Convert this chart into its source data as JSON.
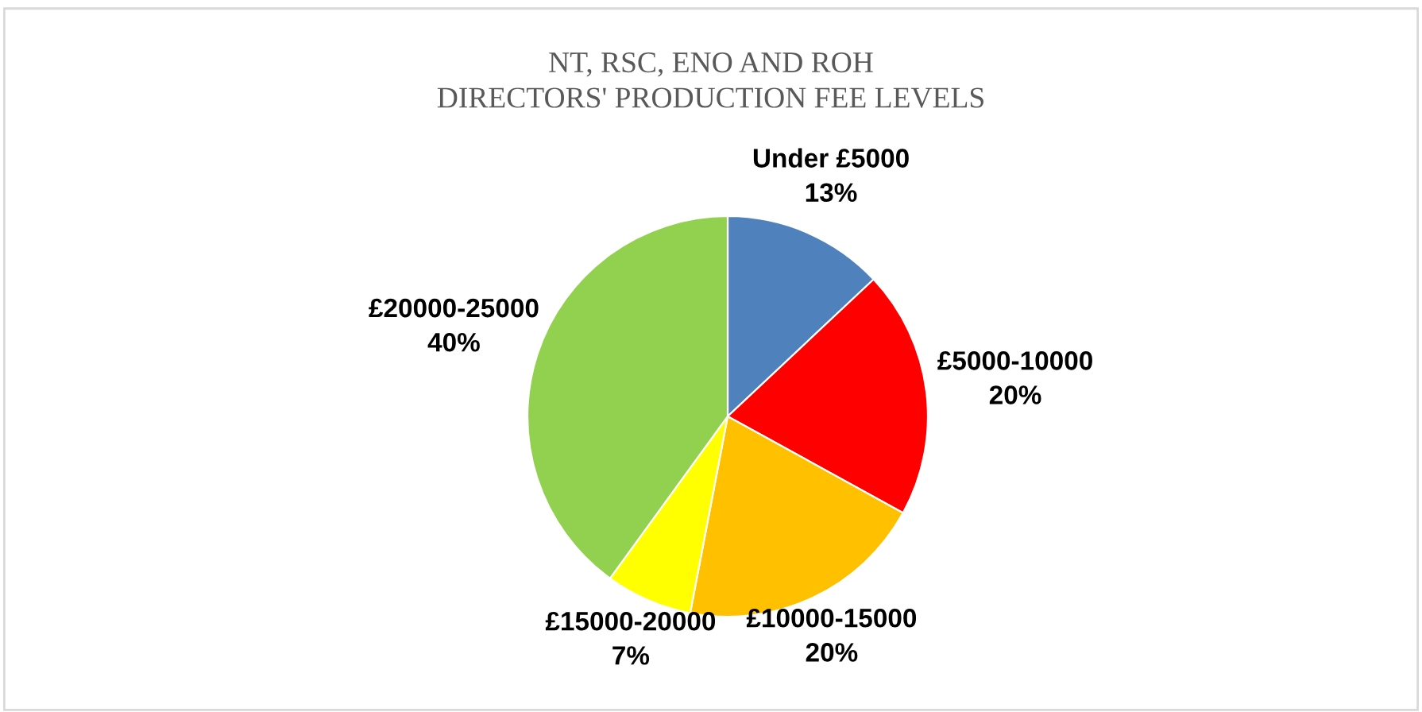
{
  "chart_data": {
    "type": "pie",
    "title": "NT, RSC, ENO AND ROH\nDIRECTORS' PRODUCTION FEE LEVELS",
    "categories": [
      "Under £5000",
      "£5000-10000",
      "£10000-15000",
      "£15000-20000",
      "£20000-25000"
    ],
    "values": [
      13,
      20,
      20,
      7,
      40
    ],
    "value_labels": [
      "13%",
      "20%",
      "20%",
      "7%",
      "40%"
    ],
    "colors": [
      "#4f81bd",
      "#ff0000",
      "#ffc000",
      "#ffff00",
      "#92d050"
    ],
    "legend": false
  }
}
